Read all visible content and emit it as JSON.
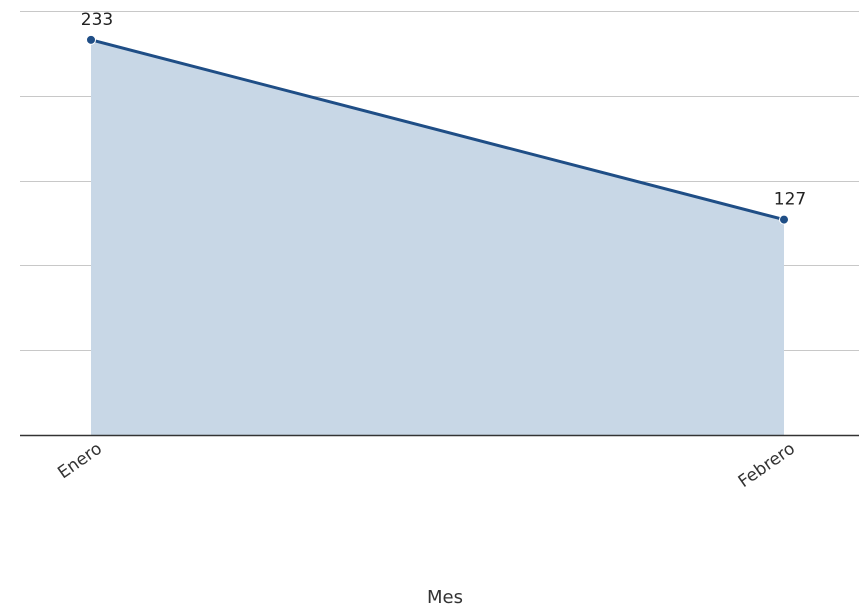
{
  "chart_data": {
    "type": "area",
    "categories": [
      "Enero",
      "Febrero"
    ],
    "values": [
      233,
      127
    ],
    "data_labels": [
      "233",
      "127"
    ],
    "xlabel": "Mes",
    "ylabel": "",
    "ylim": [
      0,
      250
    ],
    "gridlines": [
      0,
      50,
      100,
      150,
      200,
      250
    ],
    "grid": true,
    "legend": "none",
    "colors": {
      "line": "#1f4e86",
      "fill": "#c8d7e6",
      "marker": "#1f4e86",
      "grid": "#c8c8c8",
      "baseline": "#333333"
    }
  }
}
